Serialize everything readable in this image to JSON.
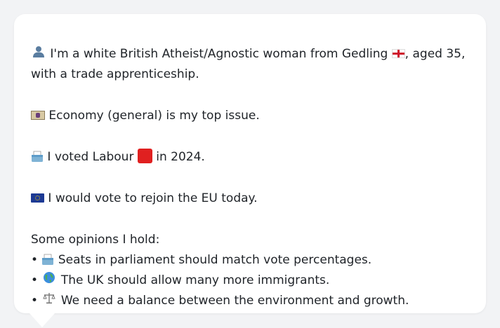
{
  "profile": {
    "intro_icon": "person-silhouette-icon",
    "intro_text_part1": "I'm a white British Atheist/Agnostic woman from Gedling",
    "intro_flag_icon": "england-flag-icon",
    "intro_text_part2": ", aged 35,",
    "intro_text_line2": "with a trade apprenticeship.",
    "issue_icon": "banknote-icon",
    "issue_text": "Economy (general) is my top issue.",
    "vote_icon": "ballot-box-icon",
    "vote_text_part1": "I voted Labour",
    "vote_party_icon": "red-square-icon",
    "vote_text_part2": "in 2024.",
    "eu_icon": "eu-flag-icon",
    "eu_text": "I would vote to rejoin the EU today.",
    "opinions_header": "Some opinions I hold:",
    "bullet": "•",
    "opinions": [
      {
        "icon": "ballot-box-icon",
        "text": "Seats in parliament should match vote percentages."
      },
      {
        "icon": "globe-icon",
        "text": "The UK should allow many more immigrants."
      },
      {
        "icon": "balance-scale-icon",
        "text": "We need a balance between the environment and growth."
      }
    ]
  },
  "colors": {
    "background": "#f2f3f5",
    "bubble": "#ffffff",
    "text": "#1f2328",
    "labour_red": "#e02020"
  }
}
